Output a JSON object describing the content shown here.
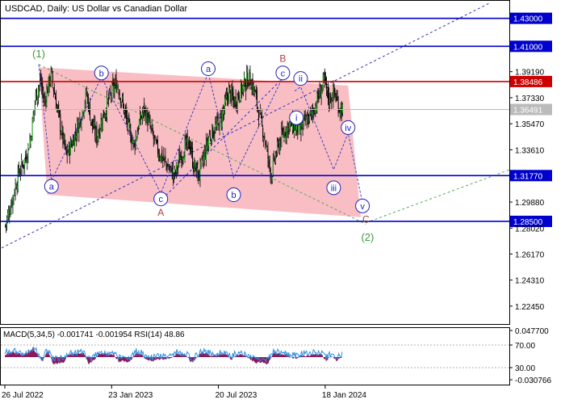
{
  "chart_data": {
    "type": "candlestick",
    "title": "USDCAD, Daily:  US Dollar vs Canadian Dollar",
    "price_axis": {
      "ylim": [
        1.2117,
        1.4425
      ],
      "ticks": [
        "1.39190",
        "1.37330",
        "1.35470",
        "1.33610",
        "1.29880",
        "1.28020",
        "1.26170",
        "1.24310",
        "1.22450"
      ],
      "levels": [
        {
          "value": 1.43,
          "label": "1.43000",
          "color": "#0000cc"
        },
        {
          "value": 1.41,
          "label": "1.41000",
          "color": "#0000cc"
        },
        {
          "value": 1.38486,
          "label": "1.38486",
          "color": "#cc0000"
        },
        {
          "value": 1.36491,
          "label": "1.36491",
          "color": "#bbbbbb"
        },
        {
          "value": 1.3177,
          "label": "1.31770",
          "color": "#0000cc"
        },
        {
          "value": 1.285,
          "label": "1.28500",
          "color": "#0000cc"
        }
      ]
    },
    "x_axis": {
      "ticks": [
        {
          "label": "26 Jul 2022",
          "bar": 0
        },
        {
          "label": "23 Jan 2023",
          "bar": 126
        },
        {
          "label": "20 Jul 2023",
          "bar": 252
        },
        {
          "label": "18 Jan 2024",
          "bar": 378
        }
      ]
    },
    "series": {
      "close": [
        [
          0,
          1.282
        ],
        [
          8,
          1.3
        ],
        [
          16,
          1.32
        ],
        [
          24,
          1.33
        ],
        [
          30,
          1.345
        ],
        [
          36,
          1.375
        ],
        [
          42,
          1.385
        ],
        [
          46,
          1.37
        ],
        [
          54,
          1.39
        ],
        [
          60,
          1.37
        ],
        [
          66,
          1.35
        ],
        [
          72,
          1.332
        ],
        [
          78,
          1.34
        ],
        [
          84,
          1.35
        ],
        [
          90,
          1.362
        ],
        [
          96,
          1.376
        ],
        [
          102,
          1.355
        ],
        [
          108,
          1.345
        ],
        [
          114,
          1.358
        ],
        [
          120,
          1.368
        ],
        [
          126,
          1.378
        ],
        [
          132,
          1.384
        ],
        [
          140,
          1.365
        ],
        [
          146,
          1.35
        ],
        [
          152,
          1.34
        ],
        [
          158,
          1.355
        ],
        [
          164,
          1.365
        ],
        [
          172,
          1.35
        ],
        [
          178,
          1.338
        ],
        [
          186,
          1.33
        ],
        [
          194,
          1.322
        ],
        [
          200,
          1.318
        ],
        [
          206,
          1.33
        ],
        [
          212,
          1.338
        ],
        [
          218,
          1.34
        ],
        [
          222,
          1.325
        ],
        [
          228,
          1.318
        ],
        [
          234,
          1.33
        ],
        [
          240,
          1.345
        ],
        [
          246,
          1.35
        ],
        [
          252,
          1.355
        ],
        [
          258,
          1.365
        ],
        [
          264,
          1.378
        ],
        [
          270,
          1.37
        ],
        [
          276,
          1.376
        ],
        [
          282,
          1.383
        ],
        [
          288,
          1.388
        ],
        [
          294,
          1.378
        ],
        [
          300,
          1.36
        ],
        [
          306,
          1.345
        ],
        [
          310,
          1.33
        ],
        [
          314,
          1.318
        ],
        [
          318,
          1.33
        ],
        [
          324,
          1.342
        ],
        [
          330,
          1.35
        ],
        [
          336,
          1.355
        ],
        [
          342,
          1.352
        ],
        [
          348,
          1.35
        ],
        [
          354,
          1.356
        ],
        [
          360,
          1.36
        ],
        [
          366,
          1.368
        ],
        [
          372,
          1.378
        ],
        [
          376,
          1.385
        ],
        [
          382,
          1.372
        ],
        [
          388,
          1.377
        ],
        [
          394,
          1.366
        ],
        [
          398,
          1.365
        ]
      ]
    },
    "channel": {
      "upper": [
        [
          40,
          1.395
        ],
        [
          405,
          1.382
        ]
      ],
      "lower": [
        [
          50,
          1.304
        ],
        [
          420,
          1.288
        ]
      ]
    },
    "annotations": {
      "blue_circles": [
        {
          "text": "a",
          "bar": 55,
          "price": 1.31
        },
        {
          "text": "b",
          "bar": 114,
          "price": 1.391
        },
        {
          "text": "c",
          "bar": 184,
          "price": 1.301
        },
        {
          "text": "a",
          "bar": 240,
          "price": 1.394
        },
        {
          "text": "b",
          "bar": 270,
          "price": 1.304
        },
        {
          "text": "c",
          "bar": 328,
          "price": 1.391
        },
        {
          "text": "ii",
          "bar": 349,
          "price": 1.387
        },
        {
          "text": "i",
          "bar": 344,
          "price": 1.359
        },
        {
          "text": "iii",
          "bar": 388,
          "price": 1.309
        },
        {
          "text": "iv",
          "bar": 405,
          "price": 1.352
        },
        {
          "text": "v",
          "bar": 422,
          "price": 1.296
        }
      ],
      "red_labels": [
        {
          "text": "A",
          "bar": 184,
          "price": 1.289
        },
        {
          "text": "B",
          "bar": 328,
          "price": 1.399
        },
        {
          "text": "C",
          "bar": 426,
          "price": 1.284
        }
      ],
      "green_labels": [
        {
          "text": "(1)",
          "bar": 40,
          "price": 1.402
        },
        {
          "text": "(2)",
          "bar": 428,
          "price": 1.271
        }
      ]
    },
    "indicator": {
      "label": "MACD(5,34,5) -0.001741 -0.001954 RSI(14) 48.86",
      "ticks": [
        "0.047700",
        "70.00",
        "30.00",
        "-0.030766"
      ]
    }
  }
}
